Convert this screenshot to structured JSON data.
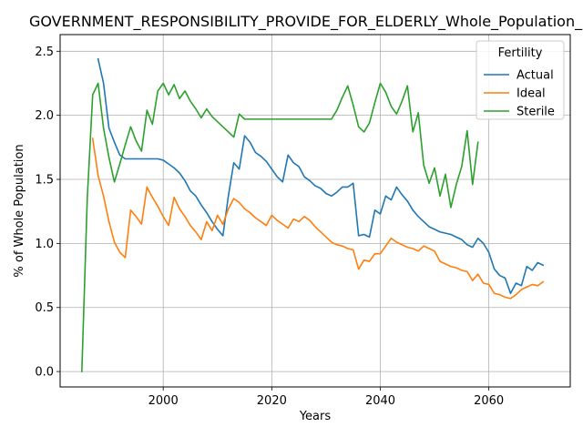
{
  "chart_data": {
    "type": "line",
    "title": "GOVERNMENT_RESPONSIBILITY_PROVIDE_FOR_ELDERLY_Whole_Population_Sc",
    "xlabel": "Years",
    "ylabel": "% of Whole Population",
    "xlim": [
      1981,
      2075
    ],
    "ylim": [
      -0.12,
      2.63
    ],
    "xticks": [
      2000,
      2020,
      2040,
      2060
    ],
    "yticks": [
      0.0,
      0.5,
      1.0,
      1.5,
      2.0,
      2.5
    ],
    "ytick_labels": [
      "0.0",
      "0.5",
      "1.0",
      "1.5",
      "2.0",
      "2.5"
    ],
    "xtick_labels": [
      "2000",
      "2020",
      "2040",
      "2060"
    ],
    "grid": true,
    "legend": {
      "title": "Fertility",
      "placement": "top-right"
    },
    "series": [
      {
        "name": "Actual",
        "color": "#1f77b4",
        "x": [
          1988,
          1989,
          1990,
          1991,
          1992,
          1993,
          1994,
          1995,
          1996,
          1997,
          1998,
          1999,
          2000,
          2001,
          2002,
          2003,
          2004,
          2005,
          2006,
          2007,
          2008,
          2009,
          2010,
          2011,
          2012,
          2013,
          2014,
          2015,
          2016,
          2017,
          2018,
          2019,
          2020,
          2021,
          2022,
          2023,
          2024,
          2025,
          2026,
          2027,
          2028,
          2029,
          2030,
          2031,
          2032,
          2033,
          2034,
          2035,
          2036,
          2037,
          2038,
          2039,
          2040,
          2041,
          2042,
          2043,
          2044,
          2045,
          2046,
          2047,
          2048,
          2049,
          2050,
          2051,
          2052,
          2053,
          2054,
          2055,
          2056,
          2057,
          2058,
          2059,
          2060,
          2061,
          2062,
          2063,
          2064,
          2065,
          2066,
          2067,
          2068,
          2069,
          2070
        ],
        "y": [
          2.44,
          2.25,
          1.9,
          1.79,
          1.69,
          1.66,
          1.66,
          1.66,
          1.66,
          1.66,
          1.66,
          1.66,
          1.65,
          1.62,
          1.59,
          1.55,
          1.49,
          1.41,
          1.37,
          1.3,
          1.24,
          1.17,
          1.11,
          1.06,
          1.37,
          1.63,
          1.58,
          1.84,
          1.79,
          1.71,
          1.68,
          1.64,
          1.58,
          1.52,
          1.48,
          1.69,
          1.63,
          1.6,
          1.52,
          1.49,
          1.45,
          1.43,
          1.39,
          1.37,
          1.4,
          1.44,
          1.44,
          1.47,
          1.06,
          1.07,
          1.05,
          1.26,
          1.23,
          1.37,
          1.34,
          1.44,
          1.38,
          1.33,
          1.26,
          1.21,
          1.17,
          1.13,
          1.11,
          1.09,
          1.08,
          1.07,
          1.05,
          1.03,
          0.99,
          0.97,
          1.04,
          1.0,
          0.93,
          0.8,
          0.75,
          0.73,
          0.61,
          0.69,
          0.67,
          0.82,
          0.79,
          0.85,
          0.83
        ]
      },
      {
        "name": "Ideal",
        "color": "#ff7f0e",
        "x": [
          1987,
          1988,
          1989,
          1990,
          1991,
          1992,
          1993,
          1994,
          1995,
          1996,
          1997,
          1998,
          1999,
          2000,
          2001,
          2002,
          2003,
          2004,
          2005,
          2006,
          2007,
          2008,
          2009,
          2010,
          2011,
          2012,
          2013,
          2014,
          2015,
          2016,
          2017,
          2018,
          2019,
          2020,
          2021,
          2022,
          2023,
          2024,
          2025,
          2026,
          2027,
          2028,
          2029,
          2030,
          2031,
          2032,
          2033,
          2034,
          2035,
          2036,
          2037,
          2038,
          2039,
          2040,
          2041,
          2042,
          2043,
          2044,
          2045,
          2046,
          2047,
          2048,
          2049,
          2050,
          2051,
          2052,
          2053,
          2054,
          2055,
          2056,
          2057,
          2058,
          2059,
          2060,
          2061,
          2062,
          2063,
          2064,
          2065,
          2066,
          2067,
          2068,
          2069,
          2070
        ],
        "y": [
          1.82,
          1.53,
          1.37,
          1.17,
          1.01,
          0.93,
          0.89,
          1.26,
          1.21,
          1.15,
          1.44,
          1.36,
          1.29,
          1.21,
          1.14,
          1.36,
          1.27,
          1.21,
          1.14,
          1.09,
          1.03,
          1.17,
          1.1,
          1.22,
          1.15,
          1.27,
          1.35,
          1.32,
          1.27,
          1.24,
          1.2,
          1.17,
          1.14,
          1.22,
          1.18,
          1.15,
          1.12,
          1.19,
          1.17,
          1.21,
          1.18,
          1.13,
          1.09,
          1.05,
          1.01,
          0.99,
          0.98,
          0.96,
          0.95,
          0.8,
          0.87,
          0.86,
          0.92,
          0.92,
          0.98,
          1.04,
          1.01,
          0.99,
          0.97,
          0.96,
          0.94,
          0.98,
          0.96,
          0.94,
          0.86,
          0.84,
          0.82,
          0.81,
          0.79,
          0.78,
          0.71,
          0.76,
          0.69,
          0.68,
          0.61,
          0.6,
          0.58,
          0.57,
          0.6,
          0.64,
          0.66,
          0.68,
          0.67,
          0.7
        ]
      },
      {
        "name": "Sterile",
        "color": "#2ca02c",
        "x": [
          1985,
          1986,
          1987,
          1988,
          1989,
          1990,
          1991,
          1992,
          1993,
          1994,
          1995,
          1996,
          1997,
          1998,
          1999,
          2000,
          2001,
          2002,
          2003,
          2004,
          2005,
          2006,
          2007,
          2008,
          2009,
          2010,
          2011,
          2012,
          2013,
          2014,
          2015,
          2016,
          2017,
          2018,
          2019,
          2020,
          2021,
          2022,
          2023,
          2024,
          2025,
          2026,
          2027,
          2028,
          2029,
          2030,
          2031,
          2032,
          2033,
          2034,
          2035,
          2036,
          2037,
          2038,
          2039,
          2040,
          2041,
          2042,
          2043,
          2044,
          2045,
          2046,
          2047,
          2048,
          2049,
          2050,
          2051,
          2052,
          2053,
          2054,
          2055,
          2056,
          2057,
          2058
        ],
        "y": [
          0.0,
          1.35,
          2.16,
          2.25,
          1.9,
          1.67,
          1.48,
          1.62,
          1.77,
          1.91,
          1.8,
          1.72,
          2.04,
          1.93,
          2.19,
          2.25,
          2.16,
          2.24,
          2.13,
          2.19,
          2.11,
          2.05,
          1.98,
          2.05,
          1.99,
          1.95,
          1.91,
          1.87,
          1.83,
          2.01,
          1.97,
          1.97,
          1.97,
          1.97,
          1.97,
          1.97,
          1.97,
          1.97,
          1.97,
          1.97,
          1.97,
          1.97,
          1.97,
          1.97,
          1.97,
          1.97,
          1.97,
          2.04,
          2.14,
          2.23,
          2.08,
          1.91,
          1.87,
          1.94,
          2.1,
          2.25,
          2.18,
          2.07,
          2.01,
          2.11,
          2.23,
          1.87,
          2.02,
          1.61,
          1.47,
          1.59,
          1.37,
          1.54,
          1.28,
          1.46,
          1.6,
          1.88,
          1.46,
          1.79
        ]
      }
    ]
  }
}
